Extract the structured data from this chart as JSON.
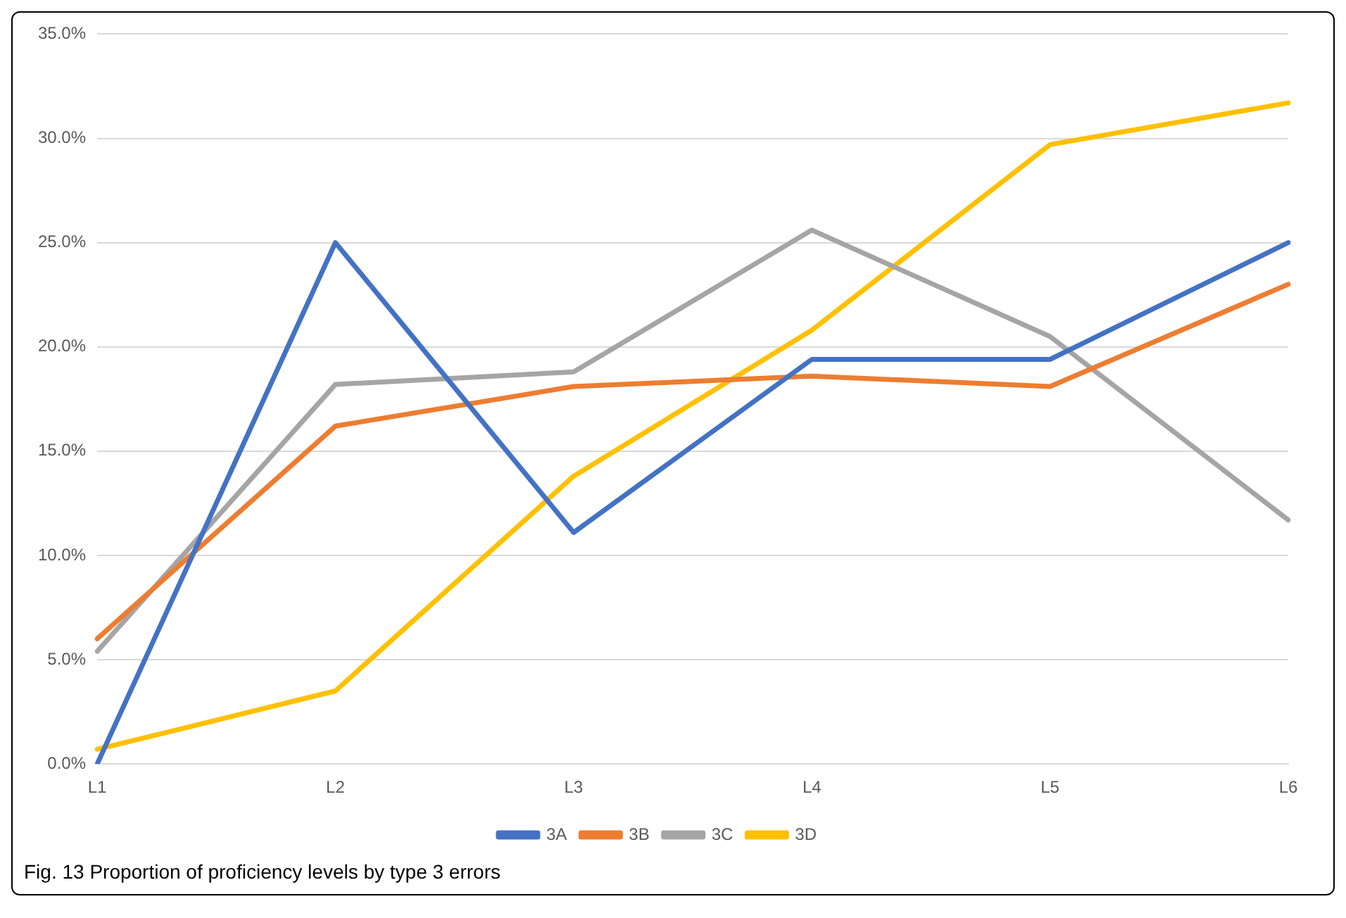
{
  "chart_data": {
    "type": "line",
    "categories": [
      "L1",
      "L2",
      "L3",
      "L4",
      "L5",
      "L6"
    ],
    "series": [
      {
        "name": "3A",
        "color": "#4472c4",
        "values": [
          0,
          25.0,
          11.1,
          19.4,
          19.4,
          25.0
        ]
      },
      {
        "name": "3B",
        "color": "#ed7d31",
        "values": [
          6.0,
          16.2,
          18.1,
          18.6,
          18.1,
          23.0
        ]
      },
      {
        "name": "3C",
        "color": "#a5a5a5",
        "values": [
          5.4,
          18.2,
          18.8,
          25.6,
          20.5,
          11.7
        ]
      },
      {
        "name": "3D",
        "color": "#ffc000",
        "values": [
          0.7,
          3.5,
          13.8,
          20.8,
          29.7,
          31.7
        ]
      }
    ],
    "ylim": [
      0,
      35
    ],
    "yticks": [
      {
        "value": 0,
        "label": "0.0%"
      },
      {
        "value": 5,
        "label": "5.0%"
      },
      {
        "value": 10,
        "label": "10.0%"
      },
      {
        "value": 15,
        "label": "15.0%"
      },
      {
        "value": 20,
        "label": "20.0%"
      },
      {
        "value": 25,
        "label": "25.0%"
      },
      {
        "value": 30,
        "label": "30.0%"
      },
      {
        "value": 35,
        "label": "35.0%"
      }
    ],
    "grid": "y",
    "legend": "bottom",
    "marker": "none",
    "line_style": "solid",
    "annotations": [
      "Fig. 13 Proportion of proficiency levels by type 3 errors"
    ]
  }
}
